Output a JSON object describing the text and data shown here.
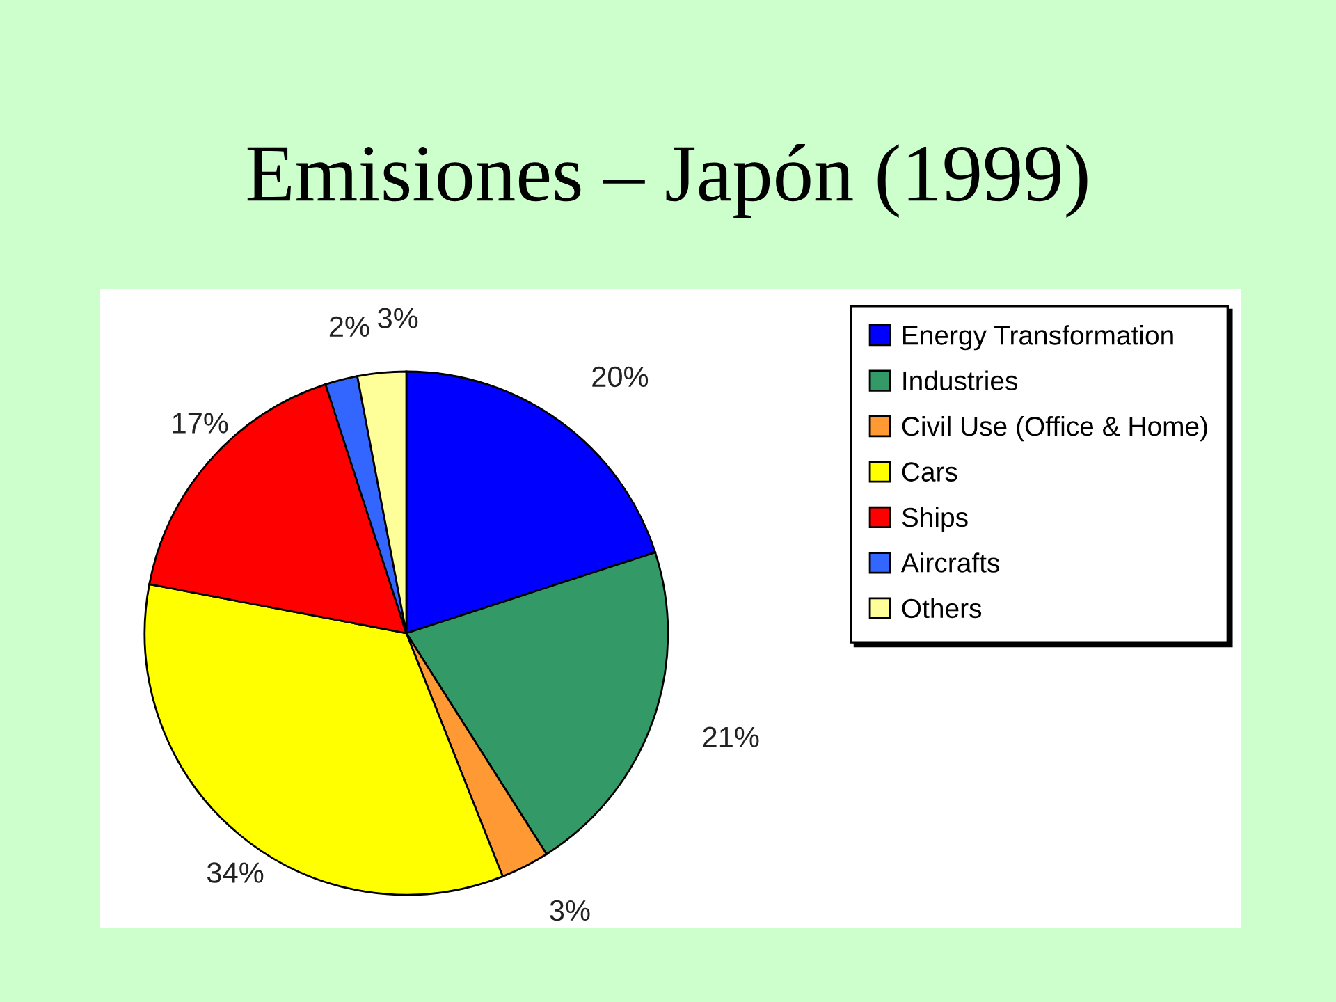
{
  "chart_data": {
    "type": "pie",
    "title": "Emisiones – Japón (1999)",
    "categories": [
      "Energy Transformation",
      "Industries",
      "Civil Use (Office & Home)",
      "Cars",
      "Ships",
      "Aircrafts",
      "Others"
    ],
    "values": [
      20,
      21,
      3,
      34,
      17,
      2,
      3
    ],
    "value_labels": [
      "20%",
      "21%",
      "3%",
      "34%",
      "17%",
      "2%",
      "3%"
    ],
    "colors": [
      "#0000ff",
      "#339966",
      "#ff9933",
      "#ffff00",
      "#ff0000",
      "#3366ff",
      "#ffff99"
    ],
    "legend": "top right"
  }
}
